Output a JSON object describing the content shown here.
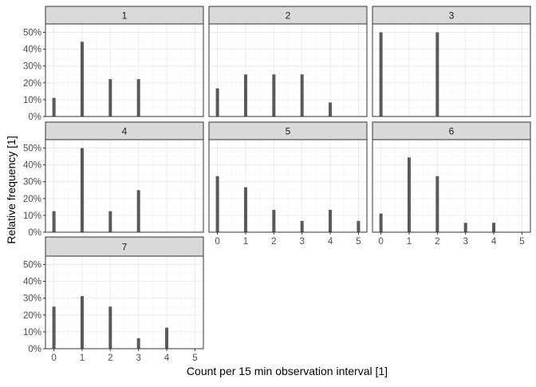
{
  "chart_data": {
    "type": "bar",
    "xlabel": "Count per 15 min observation interval [1]",
    "ylabel": "Relative frequency [1]",
    "x_ticks": [
      0,
      1,
      2,
      3,
      4,
      5
    ],
    "y_ticks": [
      "0%",
      "10%",
      "20%",
      "30%",
      "40%",
      "50%"
    ],
    "ylim": [
      0,
      0.55
    ],
    "xlim": [
      -0.3,
      5.3
    ],
    "grid": true,
    "facets": [
      {
        "label": "1",
        "x": [
          0,
          1,
          2,
          3
        ],
        "y": [
          0.111,
          0.444,
          0.222,
          0.222
        ]
      },
      {
        "label": "2",
        "x": [
          0,
          1,
          2,
          3,
          4
        ],
        "y": [
          0.167,
          0.25,
          0.25,
          0.25,
          0.083
        ]
      },
      {
        "label": "3",
        "x": [
          0,
          2
        ],
        "y": [
          0.5,
          0.5
        ]
      },
      {
        "label": "4",
        "x": [
          0,
          1,
          2,
          3
        ],
        "y": [
          0.125,
          0.5,
          0.125,
          0.25
        ]
      },
      {
        "label": "5",
        "x": [
          0,
          1,
          2,
          3,
          4,
          5
        ],
        "y": [
          0.333,
          0.267,
          0.133,
          0.067,
          0.133,
          0.067
        ]
      },
      {
        "label": "6",
        "x": [
          0,
          1,
          2,
          3,
          4
        ],
        "y": [
          0.111,
          0.444,
          0.333,
          0.056,
          0.056
        ]
      },
      {
        "label": "7",
        "x": [
          0,
          1,
          2,
          3,
          4
        ],
        "y": [
          0.25,
          0.3125,
          0.25,
          0.0625,
          0.125
        ]
      }
    ]
  }
}
